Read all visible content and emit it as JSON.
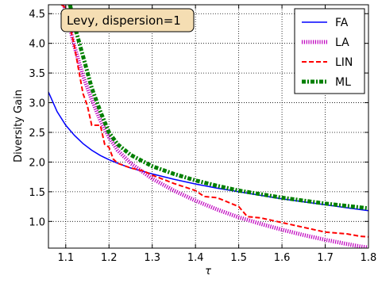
{
  "chart_data": {
    "type": "line",
    "xlabel": "τ",
    "ylabel": "Diversity Gain",
    "xlim": [
      1.06,
      1.8
    ],
    "ylim": [
      0.55,
      4.65
    ],
    "xticks": [
      1.1,
      1.2,
      1.3,
      1.4,
      1.5,
      1.6,
      1.7,
      1.8
    ],
    "yticks": [
      1.0,
      1.5,
      2.0,
      2.5,
      3.0,
      3.5,
      4.0,
      4.5
    ],
    "grid": true,
    "legend_position": "top-right",
    "annotation": "Levy, dispersion=1",
    "series": [
      {
        "name": "FA",
        "color": "#0000ff",
        "style": "solid",
        "x": [
          1.06,
          1.08,
          1.1,
          1.12,
          1.14,
          1.16,
          1.18,
          1.2,
          1.22,
          1.25,
          1.3,
          1.35,
          1.4,
          1.45,
          1.5,
          1.55,
          1.6,
          1.65,
          1.7,
          1.75,
          1.8
        ],
        "y": [
          3.18,
          2.85,
          2.62,
          2.45,
          2.31,
          2.2,
          2.11,
          2.04,
          1.98,
          1.9,
          1.8,
          1.71,
          1.63,
          1.56,
          1.5,
          1.44,
          1.38,
          1.33,
          1.28,
          1.23,
          1.18
        ]
      },
      {
        "name": "LA",
        "color": "#bf00bf",
        "style": "dotted",
        "x": [
          1.095,
          1.1,
          1.12,
          1.14,
          1.16,
          1.18,
          1.2,
          1.22,
          1.25,
          1.3,
          1.35,
          1.4,
          1.45,
          1.5,
          1.55,
          1.6,
          1.65,
          1.7,
          1.75,
          1.78,
          1.8
        ],
        "y": [
          4.65,
          4.55,
          3.95,
          3.45,
          3.05,
          2.7,
          2.42,
          2.2,
          1.98,
          1.72,
          1.52,
          1.35,
          1.2,
          1.07,
          0.96,
          0.86,
          0.77,
          0.69,
          0.62,
          0.58,
          0.56
        ]
      },
      {
        "name": "LIN",
        "color": "#ff0000",
        "style": "dashed",
        "x": [
          1.09,
          1.1,
          1.12,
          1.13,
          1.14,
          1.15,
          1.16,
          1.17,
          1.18,
          1.19,
          1.2,
          1.21,
          1.22,
          1.25,
          1.28,
          1.3,
          1.35,
          1.4,
          1.42,
          1.45,
          1.5,
          1.52,
          1.55,
          1.6,
          1.65,
          1.7,
          1.75,
          1.78,
          1.8
        ],
        "y": [
          4.65,
          4.6,
          3.95,
          3.55,
          3.15,
          2.95,
          2.62,
          2.62,
          2.62,
          2.3,
          2.25,
          2.05,
          1.98,
          1.9,
          1.85,
          1.78,
          1.64,
          1.52,
          1.42,
          1.4,
          1.25,
          1.08,
          1.06,
          0.98,
          0.9,
          0.82,
          0.79,
          0.75,
          0.74
        ]
      },
      {
        "name": "ML",
        "color": "#007f00",
        "style": "dashdot",
        "x": [
          1.11,
          1.12,
          1.14,
          1.16,
          1.18,
          1.2,
          1.22,
          1.25,
          1.3,
          1.35,
          1.4,
          1.45,
          1.5,
          1.55,
          1.6,
          1.65,
          1.7,
          1.75,
          1.8
        ],
        "y": [
          4.65,
          4.3,
          3.78,
          3.25,
          2.85,
          2.5,
          2.3,
          2.12,
          1.93,
          1.8,
          1.69,
          1.6,
          1.52,
          1.46,
          1.4,
          1.35,
          1.3,
          1.26,
          1.22
        ]
      }
    ]
  }
}
